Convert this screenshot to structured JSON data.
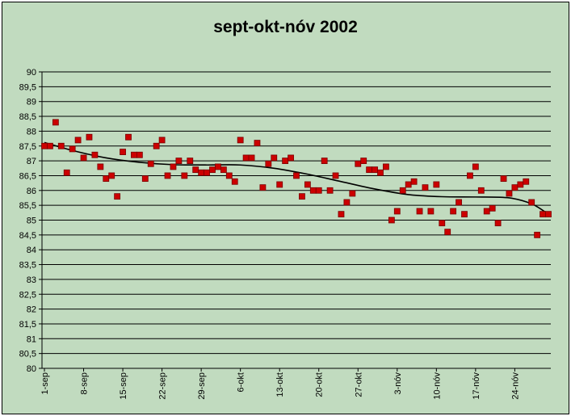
{
  "chart_data": {
    "type": "scatter",
    "title": "sept-okt-nóv 2002",
    "xlabel": "",
    "ylabel": "",
    "ylim": [
      80,
      90
    ],
    "y_ticks": [
      "90",
      "89,5",
      "89",
      "88,5",
      "88",
      "87,5",
      "87",
      "86,5",
      "86",
      "85,5",
      "85",
      "84,5",
      "84",
      "83,5",
      "83",
      "82,5",
      "82",
      "81,5",
      "81",
      "80,5",
      "80"
    ],
    "x_tick_labels": [
      "1-sep",
      "8-sep",
      "15-sep",
      "22-sep",
      "29-sep",
      "6-okt",
      "13-okt",
      "20-okt",
      "27-okt",
      "3-nóv",
      "10-nóv",
      "17-nóv",
      "24-nóv"
    ],
    "x_range_days": [
      1,
      91
    ],
    "grid": true,
    "legend": "none",
    "marker_color": "#cc0000",
    "trendline_color": "#000000",
    "background_color": "#c1dbbf",
    "series": [
      {
        "values": [
          [
            1,
            87.5
          ],
          [
            2,
            87.5
          ],
          [
            3,
            88.3
          ],
          [
            4,
            87.5
          ],
          [
            5,
            86.6
          ],
          [
            6,
            87.4
          ],
          [
            7,
            87.7
          ],
          [
            8,
            87.1
          ],
          [
            9,
            87.8
          ],
          [
            10,
            87.2
          ],
          [
            11,
            86.8
          ],
          [
            12,
            86.4
          ],
          [
            13,
            86.5
          ],
          [
            14,
            85.8
          ],
          [
            15,
            87.3
          ],
          [
            16,
            87.8
          ],
          [
            17,
            87.2
          ],
          [
            18,
            87.2
          ],
          [
            19,
            86.4
          ],
          [
            20,
            86.9
          ],
          [
            21,
            87.5
          ],
          [
            22,
            87.7
          ],
          [
            23,
            86.5
          ],
          [
            24,
            86.8
          ],
          [
            25,
            87.0
          ],
          [
            26,
            86.5
          ],
          [
            27,
            87.0
          ],
          [
            28,
            86.7
          ],
          [
            29,
            86.6
          ],
          [
            30,
            86.6
          ],
          [
            31,
            86.7
          ],
          [
            32,
            86.8
          ],
          [
            33,
            86.7
          ],
          [
            34,
            86.5
          ],
          [
            35,
            86.3
          ],
          [
            36,
            87.7
          ],
          [
            37,
            87.1
          ],
          [
            38,
            87.1
          ],
          [
            39,
            87.6
          ],
          [
            40,
            86.1
          ],
          [
            41,
            86.9
          ],
          [
            42,
            87.1
          ],
          [
            43,
            86.2
          ],
          [
            44,
            87.0
          ],
          [
            45,
            87.1
          ],
          [
            46,
            86.5
          ],
          [
            47,
            85.8
          ],
          [
            48,
            86.2
          ],
          [
            49,
            86.0
          ],
          [
            50,
            86.0
          ],
          [
            51,
            87.0
          ],
          [
            52,
            86.0
          ],
          [
            53,
            86.5
          ],
          [
            54,
            85.2
          ],
          [
            55,
            85.6
          ],
          [
            56,
            85.9
          ],
          [
            57,
            86.9
          ],
          [
            58,
            87.0
          ],
          [
            59,
            86.7
          ],
          [
            60,
            86.7
          ],
          [
            61,
            86.6
          ],
          [
            62,
            86.8
          ],
          [
            63,
            85.0
          ],
          [
            64,
            85.3
          ],
          [
            65,
            86.0
          ],
          [
            66,
            86.2
          ],
          [
            67,
            86.3
          ],
          [
            68,
            85.3
          ],
          [
            69,
            86.1
          ],
          [
            70,
            85.3
          ],
          [
            71,
            86.2
          ],
          [
            72,
            84.9
          ],
          [
            73,
            84.6
          ],
          [
            74,
            85.3
          ],
          [
            75,
            85.6
          ],
          [
            76,
            85.2
          ],
          [
            77,
            86.5
          ],
          [
            78,
            86.8
          ],
          [
            79,
            86.0
          ],
          [
            80,
            85.3
          ],
          [
            81,
            85.4
          ],
          [
            82,
            84.9
          ],
          [
            83,
            86.4
          ],
          [
            84,
            85.9
          ],
          [
            85,
            86.1
          ],
          [
            86,
            86.2
          ],
          [
            87,
            86.3
          ],
          [
            88,
            85.6
          ],
          [
            89,
            84.5
          ],
          [
            90,
            85.2
          ],
          [
            91,
            85.2
          ]
        ]
      }
    ],
    "trendline": [
      [
        1,
        87.62
      ],
      [
        6,
        87.35
      ],
      [
        12,
        87.1
      ],
      [
        18,
        86.95
      ],
      [
        24,
        86.87
      ],
      [
        30,
        86.86
      ],
      [
        36,
        86.86
      ],
      [
        42,
        86.75
      ],
      [
        48,
        86.55
      ],
      [
        54,
        86.3
      ],
      [
        60,
        86.05
      ],
      [
        66,
        85.86
      ],
      [
        72,
        85.79
      ],
      [
        78,
        85.78
      ],
      [
        84,
        85.75
      ],
      [
        88,
        85.55
      ],
      [
        91,
        85.2
      ]
    ]
  }
}
